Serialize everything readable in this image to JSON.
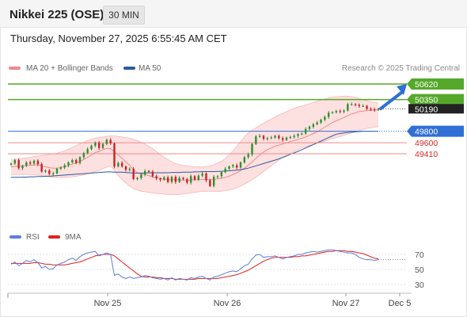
{
  "header": {
    "title": "Nikkei 225 (OSE)",
    "timeframe_label": "30 MIN",
    "datetime": "Thursday, November 27, 2025 6:55:45 AM CET"
  },
  "legend": {
    "main": [
      {
        "label": "MA 20 + Bollinger Bands",
        "color": "#f08a8a"
      },
      {
        "label": "MA 50",
        "color": "#2c5aa0"
      }
    ],
    "rsi": [
      {
        "label": "RSI",
        "color": "#5b7fd8"
      },
      {
        "label": "9MA",
        "color": "#e02020"
      }
    ]
  },
  "copyright": "Research © 2025 Trading Central",
  "colors": {
    "up_candle": "#2f8f2f",
    "down_candle": "#cc2222",
    "bollinger_fill": "#fde0e0",
    "bollinger_line": "#f7b8b8",
    "ma20": "#f08a8a",
    "ma50": "#2c5aa0",
    "resistance": "#56a82a",
    "support_pivot": "#2f6fd6",
    "support": "#f08a8a",
    "current_price": "#222222",
    "arrow": "#2f6fd6"
  },
  "chart_data": [
    {
      "type": "candlestick",
      "x_labels": [
        "Nov 25",
        "Nov 26",
        "Nov 27",
        "Dec 5"
      ],
      "ylim": [
        48850,
        50700
      ],
      "levels": [
        {
          "value": 50620,
          "label": "50620",
          "kind": "resistance"
        },
        {
          "value": 50350,
          "label": "50350",
          "kind": "resistance"
        },
        {
          "value": 50190,
          "label": "50190",
          "kind": "current"
        },
        {
          "value": 49800,
          "label": "49800",
          "kind": "pivot"
        },
        {
          "value": 49600,
          "label": "49600",
          "kind": "support"
        },
        {
          "value": 49410,
          "label": "49410",
          "kind": "support"
        }
      ],
      "close": [
        49240,
        49300,
        49160,
        49200,
        49260,
        49240,
        49290,
        49230,
        49100,
        49120,
        49060,
        49070,
        49150,
        49170,
        49210,
        49260,
        49300,
        49250,
        49350,
        49420,
        49490,
        49550,
        49600,
        49510,
        49580,
        49650,
        49590,
        49190,
        49250,
        49190,
        49130,
        49150,
        48970,
        48990,
        49050,
        49110,
        49100,
        49020,
        48980,
        48960,
        49000,
        48920,
        49010,
        48920,
        48990,
        48970,
        48910,
        49020,
        48960,
        49030,
        49070,
        48950,
        48850,
        49010,
        49020,
        49090,
        49150,
        49190,
        49210,
        49170,
        49260,
        49350,
        49400,
        49580,
        49710,
        49720,
        49670,
        49680,
        49690,
        49720,
        49680,
        49650,
        49690,
        49700,
        49720,
        49750,
        49760,
        49840,
        49880,
        49920,
        49950,
        50000,
        50050,
        50120,
        50130,
        50150,
        50140,
        50160,
        50270,
        50270,
        50260,
        50240,
        50240,
        50190,
        50180,
        50170,
        50190
      ],
      "ma20": [
        49180,
        49190,
        49195,
        49200,
        49205,
        49210,
        49215,
        49220,
        49200,
        49185,
        49170,
        49160,
        49160,
        49170,
        49185,
        49205,
        49230,
        49250,
        49280,
        49310,
        49350,
        49390,
        49430,
        49450,
        49480,
        49505,
        49500,
        49440,
        49390,
        49330,
        49270,
        49210,
        49130,
        49080,
        49060,
        49050,
        49030,
        49010,
        48990,
        48980,
        48970,
        48960,
        48960,
        48960,
        48955,
        48955,
        48950,
        48955,
        48960,
        48960,
        48965,
        48965,
        48960,
        48965,
        48975,
        48985,
        49000,
        49020,
        49050,
        49080,
        49120,
        49160,
        49210,
        49270,
        49330,
        49390,
        49440,
        49480,
        49510,
        49540,
        49560,
        49580,
        49600,
        49620,
        49640,
        49660,
        49680,
        49700,
        49730,
        49760,
        49790,
        49830,
        49870,
        49910,
        49950,
        49980,
        50010,
        50040,
        50070,
        50100,
        50120,
        50140,
        50150,
        50160,
        50165,
        50170,
        50170
      ],
      "ma50": [
        49000,
        49000,
        49000,
        49005,
        49005,
        49010,
        49010,
        49015,
        49015,
        49020,
        49020,
        49025,
        49030,
        49035,
        49040,
        49045,
        49050,
        49055,
        49060,
        49065,
        49070,
        49075,
        49080,
        49085,
        49090,
        49095,
        49095,
        49090,
        49090,
        49090,
        49085,
        49080,
        49075,
        49075,
        49075,
        49075,
        49080,
        49080,
        49080,
        49080,
        49080,
        49080,
        49085,
        49085,
        49085,
        49090,
        49090,
        49090,
        49095,
        49095,
        49100,
        49100,
        49100,
        49100,
        49105,
        49105,
        49110,
        49115,
        49120,
        49125,
        49135,
        49145,
        49160,
        49180,
        49200,
        49220,
        49240,
        49260,
        49280,
        49300,
        49320,
        49345,
        49370,
        49400,
        49425,
        49450,
        49480,
        49510,
        49540,
        49570,
        49600,
        49630,
        49660,
        49690,
        49720,
        49750,
        49760,
        49770,
        49780,
        49785,
        49790,
        49795,
        49800,
        49800,
        49800,
        49800,
        49800
      ],
      "bb_upper": [
        49300,
        49310,
        49320,
        49330,
        49340,
        49350,
        49360,
        49370,
        49380,
        49390,
        49400,
        49410,
        49420,
        49440,
        49460,
        49490,
        49520,
        49550,
        49580,
        49610,
        49640,
        49660,
        49680,
        49690,
        49700,
        49710,
        49720,
        49720,
        49710,
        49700,
        49690,
        49680,
        49660,
        49640,
        49610,
        49580,
        49540,
        49500,
        49450,
        49400,
        49350,
        49310,
        49270,
        49240,
        49220,
        49210,
        49200,
        49190,
        49180,
        49180,
        49180,
        49190,
        49200,
        49220,
        49250,
        49280,
        49330,
        49390,
        49460,
        49540,
        49620,
        49700,
        49770,
        49820,
        49860,
        49900,
        49940,
        49980,
        50010,
        50050,
        50080,
        50110,
        50140,
        50170,
        50200,
        50220,
        50240,
        50260,
        50280,
        50300,
        50320,
        50340,
        50360,
        50380,
        50390,
        50400,
        50405,
        50410,
        50410,
        50400,
        50390,
        50370,
        50350,
        50330,
        50310,
        50300,
        50290
      ],
      "bb_lower": [
        49050,
        49050,
        49050,
        49050,
        49050,
        49050,
        49045,
        49040,
        49030,
        49020,
        49010,
        49000,
        49000,
        49000,
        49000,
        49005,
        49010,
        49020,
        49030,
        49040,
        49060,
        49080,
        49100,
        49120,
        49150,
        49180,
        49200,
        49120,
        49030,
        48960,
        48900,
        48850,
        48800,
        48780,
        48760,
        48750,
        48740,
        48730,
        48720,
        48715,
        48710,
        48700,
        48700,
        48700,
        48705,
        48710,
        48720,
        48730,
        48740,
        48750,
        48760,
        48760,
        48760,
        48760,
        48760,
        48760,
        48770,
        48780,
        48800,
        48820,
        48850,
        48880,
        48920,
        48960,
        49000,
        49050,
        49100,
        49150,
        49200,
        49250,
        49300,
        49350,
        49390,
        49420,
        49450,
        49480,
        49510,
        49530,
        49550,
        49570,
        49590,
        49610,
        49630,
        49650,
        49670,
        49690,
        49710,
        49730,
        49750,
        49770,
        49790,
        49810,
        49830,
        49850,
        49860,
        49870,
        49880
      ]
    },
    {
      "type": "line",
      "name": "RSI",
      "yticks": [
        30,
        50,
        70
      ],
      "ylim": [
        25,
        85
      ],
      "rsi": [
        57,
        60,
        55,
        58,
        62,
        60,
        63,
        59,
        52,
        54,
        50,
        51,
        56,
        58,
        60,
        63,
        65,
        62,
        67,
        70,
        72,
        73,
        74,
        68,
        70,
        72,
        70,
        42,
        44,
        40,
        38,
        40,
        38,
        39,
        40,
        42,
        41,
        39,
        38,
        37,
        38,
        36,
        39,
        36,
        38,
        37,
        36,
        39,
        38,
        40,
        41,
        38,
        36,
        40,
        41,
        43,
        45,
        47,
        48,
        47,
        51,
        55,
        57,
        64,
        69,
        70,
        66,
        67,
        67,
        68,
        66,
        64,
        66,
        67,
        68,
        70,
        70,
        72,
        73,
        74,
        73,
        74,
        75,
        76,
        76,
        75,
        74,
        73,
        72,
        72,
        70,
        66,
        64,
        63,
        63,
        62,
        63
      ],
      "ma9": [
        58,
        58,
        58,
        58,
        58,
        58,
        59,
        59,
        58,
        57,
        57,
        56,
        56,
        56,
        56,
        57,
        58,
        59,
        60,
        62,
        64,
        66,
        68,
        69,
        70,
        70,
        70,
        68,
        64,
        60,
        56,
        52,
        48,
        44,
        41,
        40,
        40,
        40,
        39,
        39,
        38,
        38,
        38,
        37,
        37,
        37,
        37,
        37,
        37,
        38,
        38,
        38,
        38,
        38,
        38,
        39,
        40,
        41,
        42,
        43,
        45,
        47,
        49,
        52,
        55,
        58,
        61,
        63,
        65,
        66,
        66,
        66,
        66,
        66,
        67,
        67,
        68,
        68,
        69,
        70,
        71,
        72,
        73,
        74,
        74,
        75,
        75,
        75,
        74,
        74,
        73,
        72,
        71,
        69,
        67,
        65,
        64
      ]
    }
  ]
}
